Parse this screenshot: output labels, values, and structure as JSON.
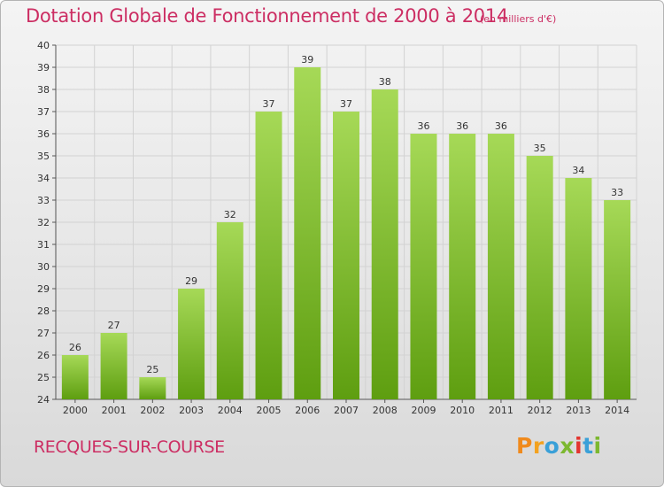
{
  "header": {
    "title": "Dotation Globale de Fonctionnement de 2000 à 2014",
    "unit": "(en milliers d'€)"
  },
  "footer": {
    "commune": "RECQUES-SUR-COURSE",
    "logo_letters": [
      "P",
      "r",
      "o",
      "x",
      "i",
      "t",
      "i"
    ]
  },
  "colors": {
    "title": "#cc2e63",
    "bar_light": "#a6d957",
    "bar_dark": "#5e9e10",
    "grid": "#d2d2d2",
    "logo": [
      "#f08a1c",
      "#f3a21f",
      "#3aa0d8",
      "#7cb82f",
      "#e3342f",
      "#3aa0d8",
      "#7cb82f"
    ]
  },
  "chart_data": {
    "type": "bar",
    "categories": [
      "2000",
      "2001",
      "2002",
      "2003",
      "2004",
      "2005",
      "2006",
      "2007",
      "2008",
      "2009",
      "2010",
      "2011",
      "2012",
      "2013",
      "2014"
    ],
    "values": [
      26,
      27,
      25,
      29,
      32,
      37,
      39,
      37,
      38,
      36,
      36,
      36,
      35,
      34,
      33
    ],
    "title": "Dotation Globale de Fonctionnement de 2000 à 2014",
    "subtitle": "(en milliers d'€)",
    "xlabel": "",
    "ylabel": "",
    "ylim": [
      24,
      40
    ],
    "yticks": [
      24,
      25,
      26,
      27,
      28,
      29,
      30,
      31,
      32,
      33,
      34,
      35,
      36,
      37,
      38,
      39,
      40
    ],
    "grid": true,
    "data_labels": true,
    "legend": "none"
  }
}
